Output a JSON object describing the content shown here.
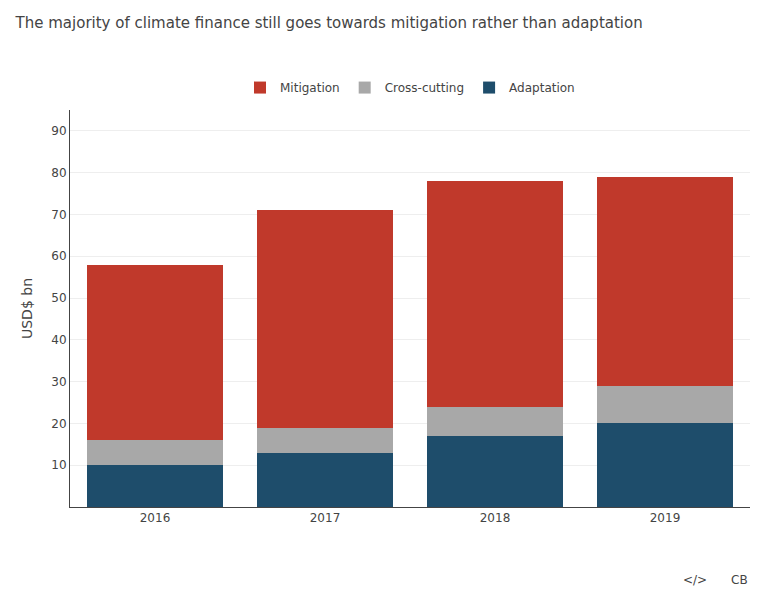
{
  "chart_data": {
    "type": "bar",
    "stacked": true,
    "title": "The majority of climate finance still goes towards mitigation rather than adaptation",
    "ylabel": "USD$ bn",
    "categories": [
      "2016",
      "2017",
      "2018",
      "2019"
    ],
    "series": [
      {
        "name": "Adaptation",
        "color": "#1e4d6b",
        "values": [
          10,
          13,
          17,
          20
        ]
      },
      {
        "name": "Cross-cutting",
        "color": "#a8a8a8",
        "values": [
          6,
          6,
          7,
          9
        ]
      },
      {
        "name": "Mitigation",
        "color": "#c0392b",
        "values": [
          42,
          52,
          54,
          50
        ]
      }
    ],
    "ylim": [
      0,
      95
    ],
    "yticks": [
      10,
      20,
      30,
      40,
      50,
      60,
      70,
      80,
      90
    ],
    "grid": true,
    "legend": "top",
    "annotations": [
      "</>",
      "CB"
    ]
  }
}
